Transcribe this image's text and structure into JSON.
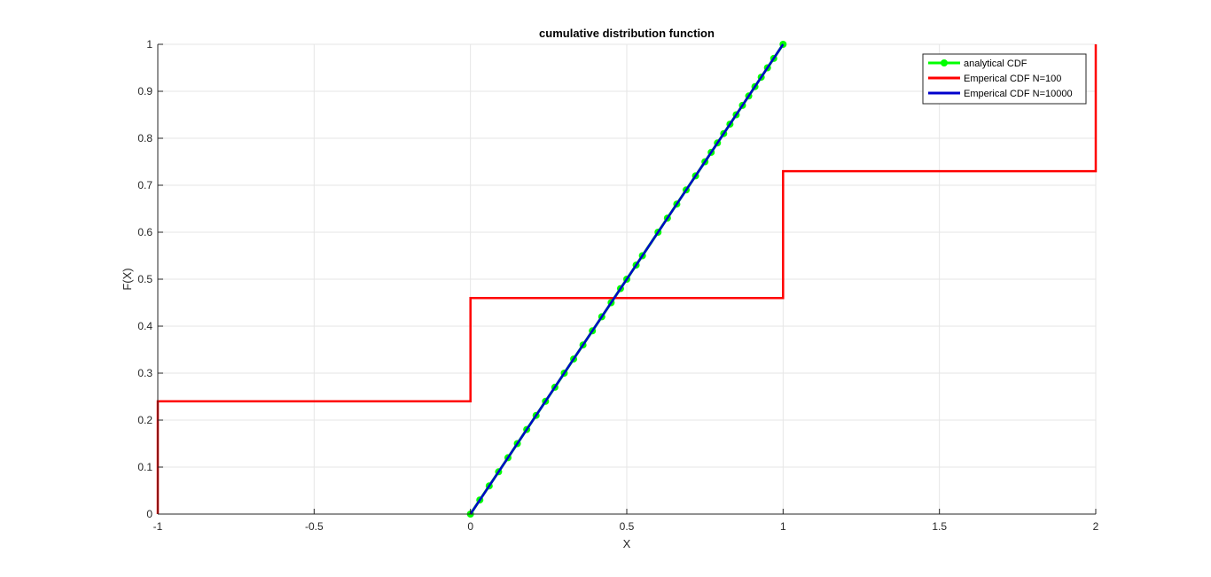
{
  "chart_data": {
    "type": "line",
    "title": "cumulative distribution function",
    "xlabel": "X",
    "ylabel": "F(X)",
    "xlim": [
      -1,
      2
    ],
    "ylim": [
      0,
      1
    ],
    "xticks": [
      -1,
      -0.5,
      0,
      0.5,
      1,
      1.5,
      2
    ],
    "xtick_labels": [
      "-1",
      "-0.5",
      "0",
      "0.5",
      "1",
      "1.5",
      "2"
    ],
    "yticks": [
      0,
      0.1,
      0.2,
      0.3,
      0.4,
      0.5,
      0.6,
      0.7,
      0.8,
      0.9,
      1
    ],
    "ytick_labels": [
      "0",
      "0.1",
      "0.2",
      "0.3",
      "0.4",
      "0.5",
      "0.6",
      "0.7",
      "0.8",
      "0.9",
      "1"
    ],
    "grid": true,
    "legend_position": "top-right",
    "series": [
      {
        "name": "analytical CDF",
        "color": "#00ff00",
        "marker": "circle",
        "x": [
          0,
          0.03,
          0.06,
          0.09,
          0.12,
          0.15,
          0.18,
          0.21,
          0.24,
          0.27,
          0.3,
          0.33,
          0.36,
          0.39,
          0.42,
          0.45,
          0.48,
          0.5,
          0.53,
          0.55,
          0.6,
          0.63,
          0.66,
          0.69,
          0.72,
          0.75,
          0.77,
          0.79,
          0.81,
          0.83,
          0.85,
          0.87,
          0.89,
          0.91,
          0.93,
          0.95,
          0.97,
          1
        ],
        "y": [
          0,
          0.03,
          0.06,
          0.09,
          0.12,
          0.15,
          0.18,
          0.21,
          0.24,
          0.27,
          0.3,
          0.33,
          0.36,
          0.39,
          0.42,
          0.45,
          0.48,
          0.5,
          0.53,
          0.55,
          0.6,
          0.63,
          0.66,
          0.69,
          0.72,
          0.75,
          0.77,
          0.79,
          0.81,
          0.83,
          0.85,
          0.87,
          0.89,
          0.91,
          0.93,
          0.95,
          0.97,
          1
        ]
      },
      {
        "name": "Emperical CDF N=100",
        "color": "#ff0000",
        "x": [
          -1,
          -1,
          0,
          0,
          1,
          1,
          2,
          2
        ],
        "y": [
          0,
          0.24,
          0.24,
          0.46,
          0.46,
          0.73,
          0.73,
          1
        ]
      },
      {
        "name": "Emperical CDF N=10000",
        "color": "#0000cc",
        "x": [
          0,
          0.25,
          0.5,
          0.75,
          1
        ],
        "y": [
          0,
          0.25,
          0.5,
          0.75,
          1
        ]
      }
    ]
  }
}
